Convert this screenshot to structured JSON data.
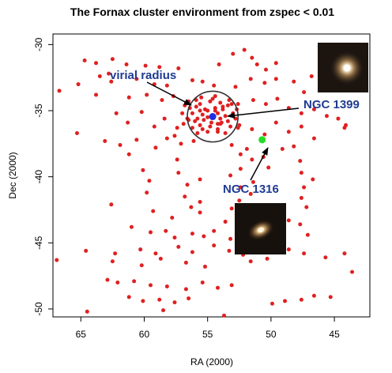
{
  "chart_data": {
    "type": "scatter",
    "title": "The Fornax cluster environment from zspec < 0.01",
    "xlabel": "RA (2000)",
    "ylabel": "Dec (2000)",
    "xlim": [
      67.2,
      42.2
    ],
    "ylim": [
      -50.6,
      -29.2
    ],
    "x_ticks": [
      65,
      60,
      55,
      50,
      45
    ],
    "y_ticks": [
      -30,
      -35,
      -40,
      -45,
      -50
    ],
    "grid": false,
    "series": [
      {
        "color": "#e02020",
        "points": [
          [
            64.7,
            -31.2
          ],
          [
            63.8,
            -31.4
          ],
          [
            62.5,
            -31.1
          ],
          [
            61.4,
            -31.5
          ],
          [
            59.9,
            -31.6
          ],
          [
            58.8,
            -31.7
          ],
          [
            57.3,
            -31.8
          ],
          [
            54.1,
            -31.5
          ],
          [
            53.0,
            -30.7
          ],
          [
            52.1,
            -30.4
          ],
          [
            51.5,
            -31.0
          ],
          [
            51.1,
            -31.5
          ],
          [
            50.4,
            -31.9
          ],
          [
            49.6,
            -31.4
          ],
          [
            62.8,
            -32.2
          ],
          [
            63.5,
            -32.4
          ],
          [
            62.6,
            -32.8
          ],
          [
            60.6,
            -32.6
          ],
          [
            59.2,
            -33.0
          ],
          [
            58.2,
            -33.1
          ],
          [
            56.2,
            -32.7
          ],
          [
            55.4,
            -32.8
          ],
          [
            54.5,
            -33.1
          ],
          [
            52.8,
            -33.2
          ],
          [
            51.6,
            -32.6
          ],
          [
            50.5,
            -32.9
          ],
          [
            49.6,
            -32.6
          ],
          [
            48.2,
            -32.8
          ],
          [
            47.4,
            -33.6
          ],
          [
            46.8,
            -32.4
          ],
          [
            45.6,
            -32.9
          ],
          [
            44.8,
            -33.2
          ],
          [
            66.7,
            -33.5
          ],
          [
            65.2,
            -33.0
          ],
          [
            63.8,
            -33.8
          ],
          [
            61.2,
            -34.0
          ],
          [
            59.8,
            -33.8
          ],
          [
            58.6,
            -34.2
          ],
          [
            57.7,
            -33.9
          ],
          [
            56.7,
            -34.4
          ],
          [
            55.9,
            -34.2
          ],
          [
            54.6,
            -34.1
          ],
          [
            53.8,
            -34.7
          ],
          [
            52.6,
            -34.5
          ],
          [
            51.4,
            -34.2
          ],
          [
            50.4,
            -34.5
          ],
          [
            49.5,
            -34.1
          ],
          [
            48.6,
            -34.8
          ],
          [
            47.6,
            -35.2
          ],
          [
            46.6,
            -34.9
          ],
          [
            45.6,
            -35.4
          ],
          [
            44.7,
            -35.6
          ],
          [
            44.1,
            -36.1
          ],
          [
            62.2,
            -35.2
          ],
          [
            61.3,
            -35.9
          ],
          [
            60.2,
            -35.1
          ],
          [
            59.2,
            -36.2
          ],
          [
            58.4,
            -35.6
          ],
          [
            57.4,
            -36.3
          ],
          [
            56.5,
            -35.7
          ],
          [
            52.5,
            -36.1
          ],
          [
            51.5,
            -36.4
          ],
          [
            50.5,
            -36.8
          ],
          [
            49.6,
            -35.9
          ],
          [
            48.6,
            -36.6
          ],
          [
            47.6,
            -36.2
          ],
          [
            46.6,
            -37.1
          ],
          [
            44.2,
            -36.3
          ],
          [
            65.3,
            -36.7
          ],
          [
            63.1,
            -37.3
          ],
          [
            61.9,
            -37.6
          ],
          [
            60.6,
            -37.2
          ],
          [
            59.1,
            -37.8
          ],
          [
            58.2,
            -37.1
          ],
          [
            57.1,
            -37.5
          ],
          [
            56.1,
            -37.3
          ],
          [
            53.1,
            -37.6
          ],
          [
            51.9,
            -37.9
          ],
          [
            49.1,
            -37.9
          ],
          [
            48.2,
            -37.7
          ],
          [
            61.2,
            -38.3
          ],
          [
            57.4,
            -38.7
          ],
          [
            52.4,
            -38.3
          ],
          [
            51.5,
            -38.7
          ],
          [
            50.6,
            -38.5
          ],
          [
            47.7,
            -38.8
          ],
          [
            60.1,
            -39.5
          ],
          [
            57.3,
            -39.7
          ],
          [
            53.2,
            -39.9
          ],
          [
            52.4,
            -39.4
          ],
          [
            50.2,
            -39.3
          ],
          [
            47.6,
            -39.7
          ],
          [
            59.6,
            -40.3
          ],
          [
            56.6,
            -40.6
          ],
          [
            55.6,
            -40.2
          ],
          [
            52.4,
            -40.8
          ],
          [
            51.4,
            -40.4
          ],
          [
            47.4,
            -40.8
          ],
          [
            46.7,
            -40.2
          ],
          [
            59.8,
            -41.2
          ],
          [
            56.8,
            -41.5
          ],
          [
            55.6,
            -41.9
          ],
          [
            52.5,
            -41.8
          ],
          [
            51.6,
            -41.3
          ],
          [
            47.6,
            -41.6
          ],
          [
            62.6,
            -42.1
          ],
          [
            59.3,
            -42.6
          ],
          [
            56.3,
            -42.3
          ],
          [
            55.6,
            -42.7
          ],
          [
            53.1,
            -42.4
          ],
          [
            52.3,
            -42.9
          ],
          [
            47.2,
            -42.3
          ],
          [
            57.8,
            -43.1
          ],
          [
            53.6,
            -43.4
          ],
          [
            52.4,
            -43.2
          ],
          [
            48.6,
            -43.3
          ],
          [
            47.7,
            -43.6
          ],
          [
            61.0,
            -43.8
          ],
          [
            59.5,
            -44.2
          ],
          [
            58.3,
            -44.1
          ],
          [
            57.6,
            -44.6
          ],
          [
            56.2,
            -44.3
          ],
          [
            55.3,
            -44.5
          ],
          [
            54.5,
            -44.1
          ],
          [
            53.2,
            -44.7
          ],
          [
            52.2,
            -44.3
          ],
          [
            51.2,
            -44.8
          ],
          [
            49.6,
            -44.1
          ],
          [
            47.1,
            -44.4
          ],
          [
            64.6,
            -45.6
          ],
          [
            62.3,
            -45.8
          ],
          [
            60.3,
            -45.5
          ],
          [
            59.1,
            -45.8
          ],
          [
            57.3,
            -45.3
          ],
          [
            56.2,
            -45.7
          ],
          [
            54.5,
            -45.2
          ],
          [
            53.3,
            -45.6
          ],
          [
            52.2,
            -45.9
          ],
          [
            51.3,
            -45.2
          ],
          [
            48.6,
            -45.5
          ],
          [
            47.4,
            -45.8
          ],
          [
            45.7,
            -46.1
          ],
          [
            44.2,
            -45.8
          ],
          [
            62.5,
            -46.4
          ],
          [
            60.2,
            -46.7
          ],
          [
            58.7,
            -46.2
          ],
          [
            56.7,
            -46.5
          ],
          [
            55.2,
            -46.8
          ],
          [
            51.6,
            -46.4
          ],
          [
            50.3,
            -46.2
          ],
          [
            43.6,
            -47.2
          ],
          [
            62.9,
            -47.8
          ],
          [
            62.1,
            -48.0
          ],
          [
            60.8,
            -47.9
          ],
          [
            59.5,
            -48.2
          ],
          [
            58.2,
            -48.3
          ],
          [
            56.7,
            -48.5
          ],
          [
            55.4,
            -48.0
          ],
          [
            54.2,
            -48.4
          ],
          [
            53.1,
            -48.2
          ],
          [
            61.2,
            -49.1
          ],
          [
            60.1,
            -49.4
          ],
          [
            58.8,
            -49.3
          ],
          [
            57.6,
            -49.5
          ],
          [
            56.5,
            -49.2
          ],
          [
            49.9,
            -49.6
          ],
          [
            48.9,
            -49.4
          ],
          [
            47.6,
            -49.3
          ],
          [
            46.6,
            -49.0
          ],
          [
            45.3,
            -49.1
          ],
          [
            64.5,
            -50.2
          ],
          [
            58.5,
            -50.1
          ],
          [
            53.7,
            -50.5
          ],
          [
            66.9,
            -46.3
          ],
          [
            54.0,
            -36.0
          ],
          [
            55.0,
            -35.0
          ],
          [
            54.2,
            -36.6
          ],
          [
            57.6,
            -36.9
          ]
        ]
      },
      {
        "color": "#e02020",
        "points": [
          [
            55.0,
            -35.5
          ],
          [
            54.6,
            -35.4
          ],
          [
            54.2,
            -35.2
          ],
          [
            55.4,
            -35.3
          ],
          [
            55.8,
            -35.6
          ],
          [
            54.0,
            -35.6
          ],
          [
            53.6,
            -35.4
          ],
          [
            55.2,
            -34.9
          ],
          [
            54.4,
            -34.8
          ],
          [
            53.8,
            -34.9
          ],
          [
            55.6,
            -35.0
          ],
          [
            56.2,
            -35.2
          ],
          [
            56.0,
            -35.8
          ],
          [
            55.6,
            -36.1
          ],
          [
            54.8,
            -36.2
          ],
          [
            54.2,
            -36.0
          ],
          [
            53.4,
            -35.8
          ],
          [
            53.0,
            -35.2
          ],
          [
            53.4,
            -34.6
          ],
          [
            54.0,
            -34.4
          ],
          [
            54.8,
            -34.3
          ],
          [
            55.6,
            -34.5
          ],
          [
            56.4,
            -34.8
          ],
          [
            56.6,
            -35.6
          ],
          [
            56.2,
            -36.3
          ],
          [
            55.0,
            -36.6
          ],
          [
            54.2,
            -36.4
          ],
          [
            53.2,
            -36.2
          ],
          [
            52.8,
            -35.6
          ],
          [
            52.7,
            -34.9
          ],
          [
            53.3,
            -34.2
          ],
          [
            54.4,
            -33.9
          ],
          [
            55.5,
            -34.0
          ],
          [
            56.5,
            -34.3
          ],
          [
            57.0,
            -35.2
          ],
          [
            56.9,
            -36.0
          ],
          [
            55.8,
            -36.7
          ],
          [
            53.6,
            -36.7
          ],
          [
            52.6,
            -36.3
          ],
          [
            55.3,
            -35.7
          ],
          [
            54.4,
            -35.0
          ],
          [
            53.9,
            -35.9
          ],
          [
            55.9,
            -34.7
          ],
          [
            54.7,
            -35.9
          ],
          [
            53.1,
            -34.5
          ],
          [
            56.8,
            -34.6
          ],
          [
            55.4,
            -36.4
          ]
        ]
      }
    ],
    "highlights": [
      {
        "label": "NGC 1399",
        "x": 54.6,
        "y": -35.45,
        "color": "#1f2fe0"
      },
      {
        "label": "NGC 1316",
        "x": 50.7,
        "y": -37.2,
        "color": "#22dd22"
      }
    ],
    "virial_radius": {
      "label": "virial radius",
      "center": [
        54.6,
        -35.45
      ],
      "radius_deg": 2.0
    },
    "annotations": [
      {
        "label": "virial radius",
        "points_to": "virial radius circle"
      },
      {
        "label": "NGC 1399",
        "points_to": "NGC 1399"
      },
      {
        "label": "NGC 1316",
        "points_to": "NGC 1316"
      }
    ],
    "insets": [
      {
        "name": "NGC 1399 image",
        "galaxy": "NGC 1399"
      },
      {
        "name": "NGC 1316 image",
        "galaxy": "NGC 1316"
      }
    ]
  }
}
